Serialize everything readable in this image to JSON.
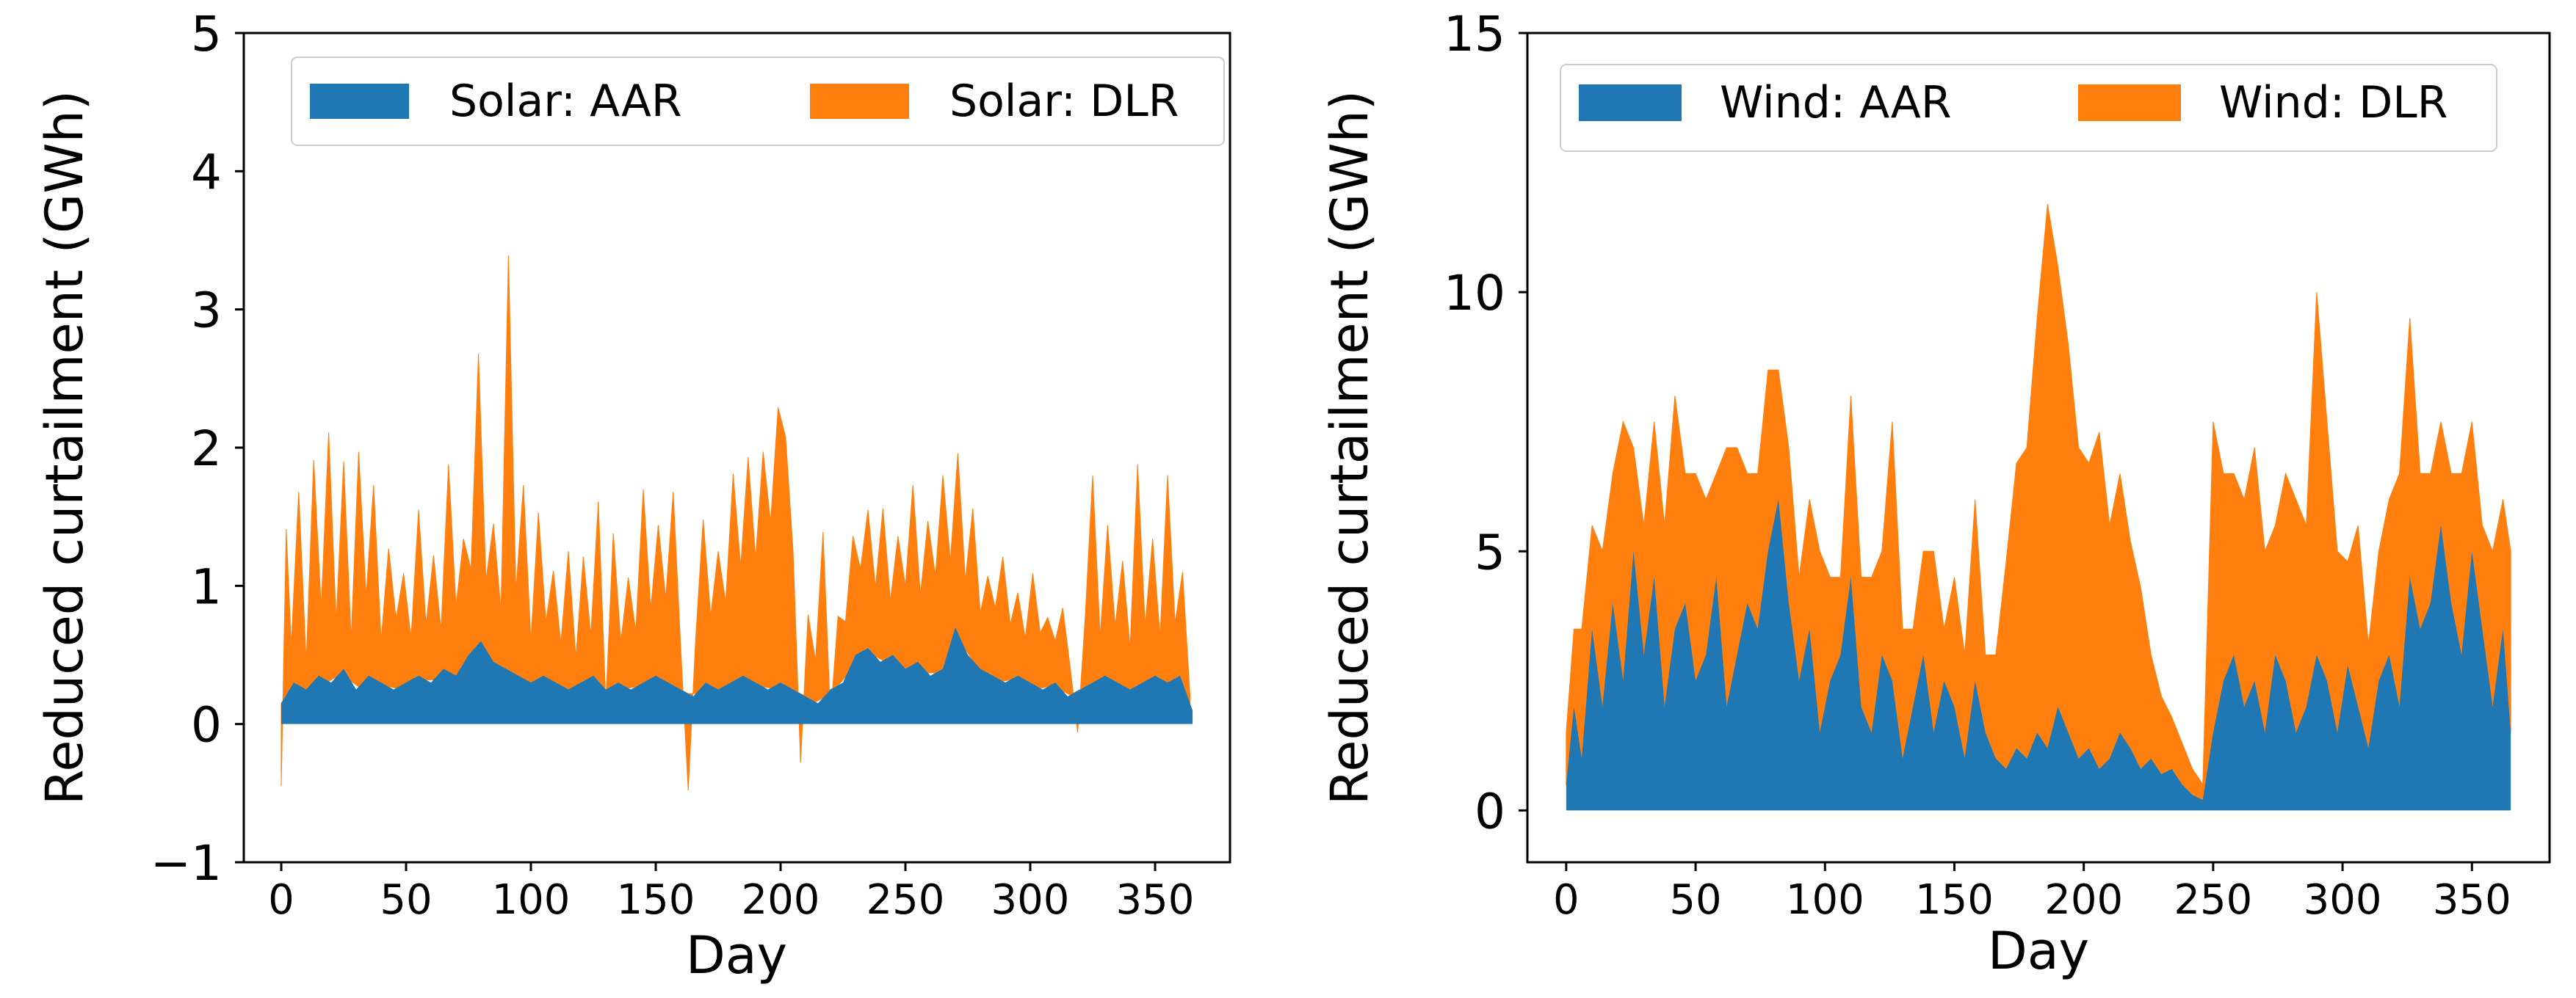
{
  "chart_data": [
    {
      "type": "area",
      "stacked": true,
      "xlabel": "Day",
      "ylabel": "Reduced curtailment (GWh)",
      "xlim": [
        -15,
        380
      ],
      "ylim": [
        -1,
        5
      ],
      "xticks": [
        0,
        50,
        100,
        150,
        200,
        250,
        300,
        350
      ],
      "yticks": [
        -1,
        0,
        1,
        2,
        3,
        4,
        5
      ],
      "ytick_labels": [
        "−1",
        "0",
        "1",
        "2",
        "3",
        "4",
        "5"
      ],
      "legend_position": "top",
      "series": [
        {
          "name": "Solar: AAR",
          "color": "#1f77b4",
          "x": [
            0,
            5,
            10,
            15,
            20,
            25,
            30,
            35,
            40,
            45,
            50,
            55,
            60,
            65,
            70,
            75,
            80,
            85,
            90,
            95,
            100,
            105,
            110,
            115,
            120,
            125,
            130,
            135,
            140,
            145,
            150,
            155,
            160,
            165,
            170,
            175,
            180,
            185,
            190,
            195,
            200,
            205,
            210,
            215,
            220,
            225,
            230,
            235,
            240,
            245,
            250,
            255,
            260,
            265,
            270,
            275,
            280,
            285,
            290,
            295,
            300,
            305,
            310,
            315,
            320,
            325,
            330,
            335,
            340,
            345,
            350,
            355,
            360,
            365
          ],
          "values": [
            0.15,
            0.3,
            0.25,
            0.35,
            0.3,
            0.4,
            0.25,
            0.35,
            0.3,
            0.25,
            0.3,
            0.35,
            0.3,
            0.4,
            0.35,
            0.5,
            0.6,
            0.45,
            0.4,
            0.35,
            0.3,
            0.35,
            0.3,
            0.25,
            0.3,
            0.35,
            0.25,
            0.3,
            0.25,
            0.3,
            0.35,
            0.3,
            0.25,
            0.2,
            0.3,
            0.25,
            0.3,
            0.35,
            0.3,
            0.25,
            0.3,
            0.25,
            0.2,
            0.15,
            0.25,
            0.3,
            0.5,
            0.55,
            0.45,
            0.5,
            0.4,
            0.45,
            0.35,
            0.4,
            0.7,
            0.5,
            0.4,
            0.35,
            0.3,
            0.35,
            0.3,
            0.25,
            0.3,
            0.2,
            0.25,
            0.3,
            0.35,
            0.3,
            0.25,
            0.3,
            0.35,
            0.3,
            0.35,
            0.1
          ]
        },
        {
          "name": "Solar: DLR",
          "color": "#ff7f0e",
          "x": [
            0,
            2,
            4,
            7,
            10,
            13,
            16,
            19,
            22,
            25,
            28,
            31,
            34,
            37,
            40,
            43,
            46,
            49,
            52,
            55,
            58,
            61,
            64,
            67,
            70,
            73,
            76,
            79,
            82,
            85,
            88,
            91,
            94,
            97,
            100,
            103,
            106,
            109,
            112,
            115,
            118,
            121,
            124,
            127,
            130,
            133,
            136,
            139,
            142,
            145,
            148,
            151,
            154,
            157,
            160,
            163,
            166,
            169,
            172,
            175,
            178,
            181,
            184,
            187,
            190,
            193,
            196,
            199,
            202,
            205,
            208,
            211,
            214,
            217,
            220,
            223,
            226,
            229,
            232,
            235,
            238,
            241,
            244,
            247,
            250,
            253,
            256,
            259,
            262,
            265,
            268,
            271,
            274,
            277,
            280,
            283,
            286,
            289,
            292,
            295,
            298,
            301,
            304,
            307,
            310,
            313,
            316,
            319,
            322,
            325,
            328,
            331,
            334,
            337,
            340,
            343,
            346,
            349,
            352,
            355,
            358,
            361,
            364
          ],
          "values": [
            -0.6,
            1.2,
            0.3,
            1.4,
            0.2,
            1.6,
            0.5,
            1.8,
            0.4,
            1.5,
            0.3,
            1.7,
            0.6,
            1.4,
            0.3,
            1.0,
            0.5,
            0.8,
            0.3,
            1.2,
            0.4,
            0.9,
            0.3,
            1.5,
            0.5,
            0.9,
            0.6,
            2.1,
            0.5,
            1.0,
            0.4,
            3.0,
            0.6,
            1.4,
            0.3,
            1.2,
            0.4,
            0.8,
            0.3,
            1.0,
            0.2,
            0.9,
            0.3,
            1.3,
            -0.1,
            1.1,
            0.3,
            0.8,
            0.4,
            1.4,
            0.5,
            1.1,
            0.6,
            1.4,
            0.3,
            -0.7,
            0.4,
            1.2,
            0.5,
            1.0,
            0.6,
            1.5,
            0.8,
            1.6,
            0.9,
            1.7,
            1.2,
            2.0,
            1.8,
            1.0,
            -0.5,
            0.6,
            0.3,
            1.2,
            -0.2,
            0.5,
            0.4,
            0.9,
            0.6,
            1.0,
            0.5,
            1.1,
            0.4,
            0.9,
            0.6,
            1.3,
            0.5,
            1.1,
            0.7,
            1.4,
            0.6,
            1.3,
            0.5,
            1.1,
            0.4,
            0.7,
            0.5,
            0.9,
            0.4,
            0.6,
            0.3,
            0.8,
            0.4,
            0.5,
            0.3,
            0.6,
            0.2,
            -0.3,
            0.5,
            1.5,
            0.3,
            1.1,
            0.4,
            0.9,
            0.3,
            1.6,
            0.4,
            1.0,
            0.3,
            1.5,
            0.4,
            0.8,
            0.05
          ]
        }
      ]
    },
    {
      "type": "area",
      "stacked": true,
      "xlabel": "Day",
      "ylabel": "Reduced curtailment (GWh)",
      "xlim": [
        -15,
        380
      ],
      "ylim": [
        -1,
        15
      ],
      "xticks": [
        0,
        50,
        100,
        150,
        200,
        250,
        300,
        350
      ],
      "yticks": [
        0,
        5,
        10,
        15
      ],
      "ytick_labels": [
        "0",
        "5",
        "10",
        "15"
      ],
      "legend_position": "top",
      "series": [
        {
          "name": "Wind: AAR",
          "color": "#1f77b4",
          "x": [
            0,
            3,
            6,
            10,
            14,
            18,
            22,
            26,
            30,
            34,
            38,
            42,
            46,
            50,
            54,
            58,
            62,
            66,
            70,
            74,
            78,
            82,
            86,
            90,
            94,
            98,
            102,
            106,
            110,
            114,
            118,
            122,
            126,
            130,
            134,
            138,
            142,
            146,
            150,
            154,
            158,
            162,
            166,
            170,
            174,
            178,
            182,
            186,
            190,
            194,
            198,
            202,
            206,
            210,
            214,
            218,
            222,
            226,
            230,
            234,
            238,
            242,
            246,
            250,
            254,
            258,
            262,
            266,
            270,
            274,
            278,
            282,
            286,
            290,
            294,
            298,
            302,
            306,
            310,
            314,
            318,
            322,
            326,
            330,
            334,
            338,
            342,
            346,
            350,
            354,
            358,
            362,
            365
          ],
          "values": [
            0.5,
            2.0,
            1.0,
            3.5,
            2.0,
            4.0,
            2.5,
            5.0,
            3.0,
            4.5,
            2.0,
            3.5,
            4.0,
            2.5,
            3.0,
            4.5,
            2.0,
            3.0,
            4.0,
            3.5,
            5.0,
            6.0,
            4.0,
            2.5,
            3.5,
            1.5,
            2.5,
            3.0,
            4.5,
            2.0,
            1.5,
            3.0,
            2.5,
            1.0,
            2.0,
            3.0,
            1.5,
            2.5,
            2.0,
            1.0,
            2.5,
            1.5,
            1.0,
            0.8,
            1.2,
            1.0,
            1.5,
            1.2,
            2.0,
            1.5,
            1.0,
            1.2,
            0.8,
            1.0,
            1.5,
            1.2,
            0.8,
            1.0,
            0.7,
            0.8,
            0.5,
            0.3,
            0.2,
            1.5,
            2.5,
            3.0,
            2.0,
            2.5,
            1.5,
            3.0,
            2.5,
            1.5,
            2.0,
            3.0,
            2.5,
            1.5,
            2.8,
            2.0,
            1.2,
            2.5,
            3.0,
            2.0,
            4.5,
            3.5,
            4.0,
            5.5,
            4.0,
            3.0,
            5.0,
            3.5,
            2.0,
            3.5,
            1.5
          ]
        },
        {
          "name": "Wind: DLR",
          "color": "#ff7f0e",
          "x": [
            0,
            3,
            6,
            10,
            14,
            18,
            22,
            26,
            30,
            34,
            38,
            42,
            46,
            50,
            54,
            58,
            62,
            66,
            70,
            74,
            78,
            82,
            86,
            90,
            94,
            98,
            102,
            106,
            110,
            114,
            118,
            122,
            126,
            130,
            134,
            138,
            142,
            146,
            150,
            154,
            158,
            162,
            166,
            170,
            174,
            178,
            182,
            186,
            190,
            194,
            198,
            202,
            206,
            210,
            214,
            218,
            222,
            226,
            230,
            234,
            238,
            242,
            246,
            250,
            254,
            258,
            262,
            266,
            270,
            274,
            278,
            282,
            286,
            290,
            294,
            298,
            302,
            306,
            310,
            314,
            318,
            322,
            326,
            330,
            334,
            338,
            342,
            346,
            350,
            354,
            358,
            362,
            365
          ],
          "values": [
            1.0,
            1.5,
            2.5,
            2.0,
            3.0,
            2.5,
            5.0,
            2.0,
            2.5,
            3.0,
            3.5,
            4.5,
            2.5,
            4.0,
            3.0,
            2.0,
            5.0,
            4.0,
            2.5,
            3.0,
            3.5,
            2.5,
            3.0,
            2.0,
            2.5,
            3.5,
            2.0,
            1.5,
            3.5,
            2.5,
            3.0,
            2.0,
            5.0,
            2.5,
            1.5,
            2.0,
            3.5,
            1.0,
            2.5,
            2.0,
            3.5,
            1.5,
            2.0,
            4.0,
            5.5,
            6.0,
            8.0,
            10.5,
            8.5,
            7.5,
            6.0,
            5.5,
            6.5,
            4.5,
            5.0,
            4.0,
            3.5,
            2.0,
            1.5,
            1.0,
            0.8,
            0.5,
            0.3,
            6.0,
            4.0,
            3.5,
            4.0,
            4.5,
            3.5,
            2.5,
            4.0,
            4.5,
            3.5,
            7.0,
            5.0,
            3.5,
            2.0,
            3.5,
            2.0,
            2.5,
            3.0,
            4.5,
            5.0,
            3.0,
            2.5,
            2.0,
            2.5,
            3.5,
            2.5,
            2.0,
            3.0,
            2.5,
            3.5
          ]
        }
      ]
    }
  ]
}
